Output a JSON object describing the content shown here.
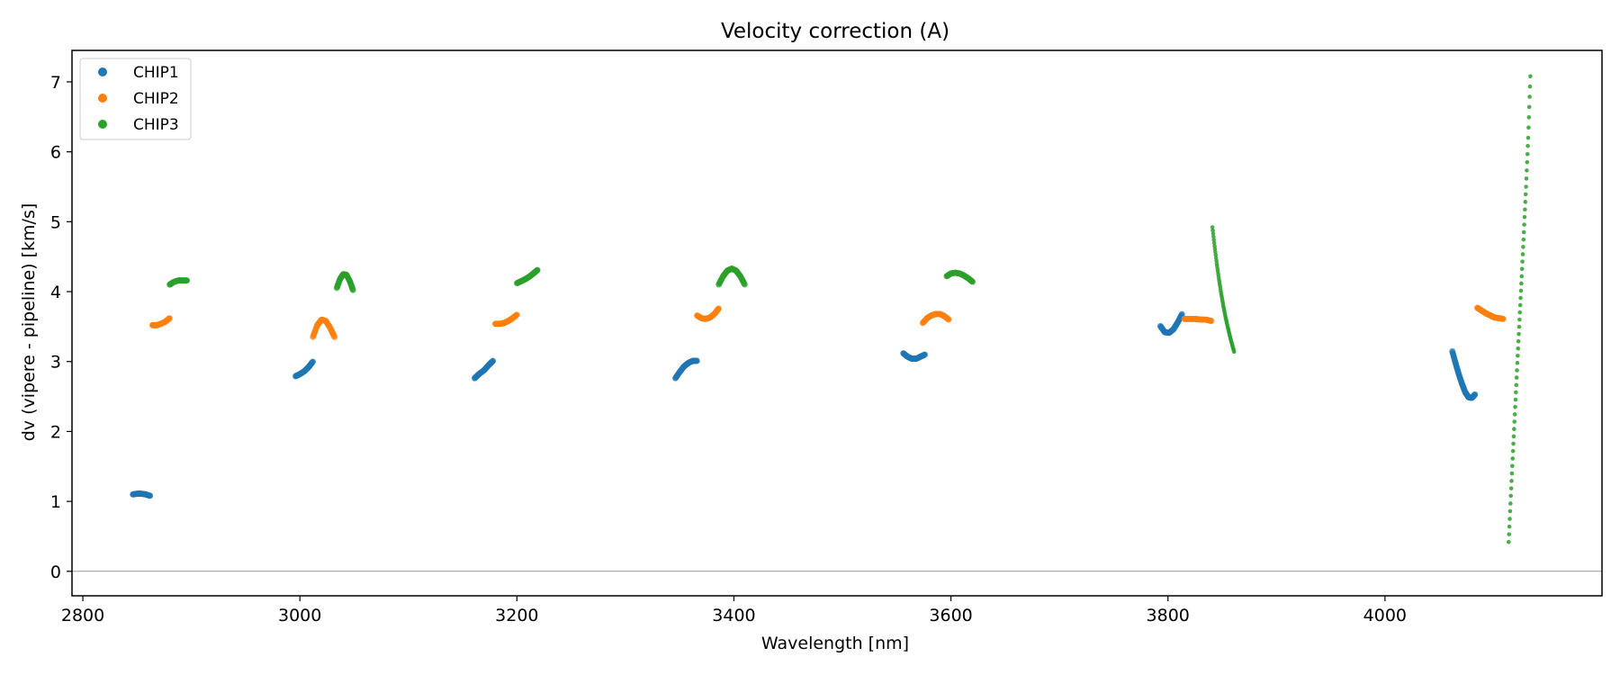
{
  "chart_data": {
    "type": "scatter",
    "title": "Velocity correction (A)",
    "xlabel": "Wavelength [nm]",
    "ylabel": "dv (vipere - pipeline) [km/s]",
    "xlim": [
      2790,
      4200
    ],
    "ylim": [
      -0.35,
      7.45
    ],
    "xticks": [
      2800,
      3000,
      3200,
      3400,
      3600,
      3800,
      4000
    ],
    "yticks": [
      0,
      1,
      2,
      3,
      4,
      5,
      6,
      7
    ],
    "hline": 0,
    "legend": {
      "location": "upper-left"
    },
    "series": [
      {
        "name": "CHIP1",
        "color": "#1f77b4",
        "segments": [
          {
            "x": [
              2846,
              2850,
              2854,
              2858,
              2862
            ],
            "y": [
              1.1,
              1.11,
              1.11,
              1.1,
              1.08
            ]
          },
          {
            "x": [
              2996,
              3000,
              3004,
              3008,
              3012
            ],
            "y": [
              2.79,
              2.82,
              2.86,
              2.92,
              3.0
            ]
          },
          {
            "x": [
              3161,
              3165,
              3170,
              3174,
              3178
            ],
            "y": [
              2.76,
              2.82,
              2.88,
              2.95,
              3.01
            ]
          },
          {
            "x": [
              3346,
              3350,
              3354,
              3358,
              3362,
              3366
            ],
            "y": [
              2.76,
              2.85,
              2.93,
              2.98,
              3.01,
              3.01
            ]
          },
          {
            "x": [
              3556,
              3560,
              3564,
              3568,
              3572,
              3576
            ],
            "y": [
              3.12,
              3.07,
              3.04,
              3.04,
              3.07,
              3.1
            ]
          },
          {
            "x": [
              3793,
              3797,
              3801,
              3805,
              3809,
              3813
            ],
            "y": [
              3.51,
              3.42,
              3.41,
              3.46,
              3.56,
              3.68
            ]
          },
          {
            "x": [
              4062,
              4065,
              4068,
              4071,
              4074,
              4077,
              4080,
              4083
            ],
            "y": [
              3.15,
              2.98,
              2.82,
              2.68,
              2.56,
              2.49,
              2.48,
              2.53
            ]
          }
        ]
      },
      {
        "name": "CHIP2",
        "color": "#ff7f0e",
        "segments": [
          {
            "x": [
              2864,
              2868,
              2872,
              2876,
              2880
            ],
            "y": [
              3.52,
              3.52,
              3.54,
              3.57,
              3.62
            ]
          },
          {
            "x": [
              3012,
              3016,
              3020,
              3024,
              3028,
              3032
            ],
            "y": [
              3.35,
              3.52,
              3.6,
              3.58,
              3.48,
              3.35
            ]
          },
          {
            "x": [
              3180,
              3184,
              3188,
              3192,
              3196,
              3200
            ],
            "y": [
              3.54,
              3.54,
              3.55,
              3.58,
              3.62,
              3.67
            ]
          },
          {
            "x": [
              3366,
              3370,
              3374,
              3378,
              3382,
              3386
            ],
            "y": [
              3.66,
              3.62,
              3.61,
              3.63,
              3.68,
              3.76
            ]
          },
          {
            "x": [
              3574,
              3578,
              3582,
              3586,
              3590,
              3594,
              3598
            ],
            "y": [
              3.55,
              3.62,
              3.66,
              3.68,
              3.68,
              3.65,
              3.6
            ]
          },
          {
            "x": [
              3815,
              3820,
              3825,
              3830,
              3835,
              3840
            ],
            "y": [
              3.61,
              3.61,
              3.61,
              3.6,
              3.6,
              3.58
            ]
          },
          {
            "x": [
              4085,
              4089,
              4093,
              4097,
              4101,
              4105,
              4109
            ],
            "y": [
              3.77,
              3.73,
              3.69,
              3.66,
              3.63,
              3.62,
              3.61
            ]
          }
        ]
      },
      {
        "name": "CHIP3",
        "color": "#2ca02c",
        "segments": [
          {
            "x": [
              2880,
              2884,
              2888,
              2892,
              2896
            ],
            "y": [
              4.1,
              4.14,
              4.16,
              4.16,
              4.16
            ]
          },
          {
            "x": [
              3034,
              3037,
              3040,
              3043,
              3046,
              3049
            ],
            "y": [
              4.05,
              4.18,
              4.25,
              4.24,
              4.15,
              4.02
            ]
          },
          {
            "x": [
              3200,
              3204,
              3208,
              3212,
              3216,
              3219
            ],
            "y": [
              4.12,
              4.15,
              4.18,
              4.22,
              4.27,
              4.31
            ]
          },
          {
            "x": [
              3386,
              3390,
              3394,
              3398,
              3402,
              3406,
              3410
            ],
            "y": [
              4.1,
              4.22,
              4.3,
              4.33,
              4.3,
              4.22,
              4.1
            ]
          },
          {
            "x": [
              3596,
              3600,
              3604,
              3608,
              3612,
              3616,
              3620
            ],
            "y": [
              4.22,
              4.26,
              4.27,
              4.26,
              4.23,
              4.19,
              4.14
            ]
          },
          {
            "x": [
              3841,
              3843,
              3845,
              3847,
              3849,
              3851,
              3853,
              3855,
              3857,
              3859,
              3861
            ],
            "y": [
              4.92,
              4.65,
              4.4,
              4.18,
              3.98,
              3.8,
              3.64,
              3.5,
              3.37,
              3.25,
              3.14
            ]
          },
          {
            "x": [
              4114,
              4116,
              4118,
              4120,
              4122,
              4124,
              4126,
              4128,
              4130,
              4132,
              4134
            ],
            "y": [
              0.42,
              1.08,
              1.72,
              2.35,
              2.98,
              3.6,
              4.22,
              4.85,
              5.5,
              6.2,
              7.08
            ]
          }
        ]
      }
    ]
  }
}
